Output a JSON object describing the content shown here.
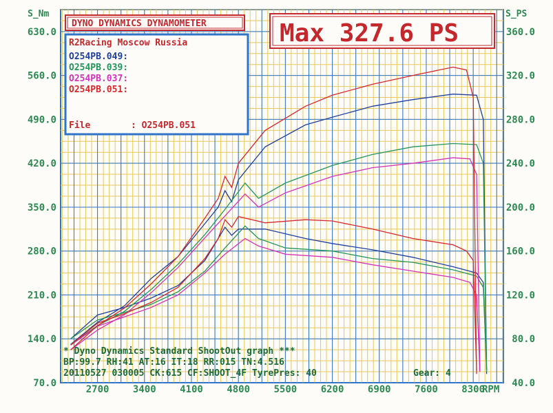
{
  "header": {
    "title": "DYNO DYNAMICS DYNAMOMETER",
    "max_label": "Max 327.6 PS"
  },
  "legend": {
    "shop": "R2Racing Moscow Russia",
    "file_label": "File",
    "file_value": ": O254PB.051"
  },
  "footer": {
    "line1": "* Dyno Dynamics Standard ShootOut graph ***",
    "line2": "BP:99.7  RH:41 AT:16 IT:18  RR:015 TN:4.516",
    "line3_left": "20110527 030005 CK:615 CF:SHOOT_4F TyrePres: 40",
    "line3_right": "Gear: 4"
  },
  "colors": {
    "background": "#fdfcf8",
    "grid_minor": "#e8c85a",
    "grid_major": "#2f74c9",
    "axis_text": "#2c8a52",
    "red": "#d8262d",
    "blue": "#1f3f9e",
    "green": "#23955a",
    "magenta": "#d432b8",
    "title_red": "#c4282d"
  },
  "chart_data": {
    "type": "line",
    "title": "DYNO DYNAMICS DYNAMOMETER",
    "xlabel": "RPM",
    "ylabel_left": "S_Nm",
    "ylabel_right": "S_PS",
    "xlim": [
      2150,
      8750
    ],
    "ylim_left": [
      70,
      665
    ],
    "ylim_right": [
      40,
      380
    ],
    "x_ticks": [
      "2700",
      "3400",
      "4100",
      "4800",
      "5500",
      "6200",
      "6900",
      "7600",
      "8300"
    ],
    "y_left_ticks": [
      "630.0",
      "560.0",
      "490.0",
      "420.0",
      "350.0",
      "280.0",
      "210.0",
      "140.0",
      "70.0"
    ],
    "y_right_ticks": [
      "360.0",
      "320.0",
      "280.0",
      "240.0",
      "200.0",
      "160.0",
      "120.0",
      "80.0",
      "40.0"
    ],
    "grid": true,
    "legend_position": "top-left",
    "series": [
      {
        "name": "O254PB.049:",
        "color": "#1f3f9e",
        "torque": [
          [
            2300,
            140
          ],
          [
            2700,
            178
          ],
          [
            3100,
            190
          ],
          [
            3500,
            205
          ],
          [
            3900,
            225
          ],
          [
            4300,
            265
          ],
          [
            4500,
            300
          ],
          [
            4600,
            318
          ],
          [
            4700,
            305
          ],
          [
            4800,
            315
          ],
          [
            5200,
            315
          ],
          [
            5800,
            300
          ],
          [
            6200,
            292
          ],
          [
            6800,
            282
          ],
          [
            7400,
            270
          ],
          [
            8000,
            255
          ],
          [
            8350,
            245
          ],
          [
            8450,
            230
          ],
          [
            8500,
            90
          ]
        ],
        "power": [
          [
            2300,
            75
          ],
          [
            2700,
            95
          ],
          [
            3100,
            110
          ],
          [
            3500,
            135
          ],
          [
            3900,
            155
          ],
          [
            4300,
            185
          ],
          [
            4500,
            200
          ],
          [
            4600,
            215
          ],
          [
            4700,
            205
          ],
          [
            4800,
            225
          ],
          [
            5200,
            255
          ],
          [
            5800,
            275
          ],
          [
            6200,
            282
          ],
          [
            6800,
            292
          ],
          [
            7400,
            298
          ],
          [
            8000,
            303
          ],
          [
            8350,
            302
          ],
          [
            8450,
            280
          ],
          [
            8500,
            48
          ]
        ]
      },
      {
        "name": "O254PB.039:",
        "color": "#23955a",
        "torque": [
          [
            2300,
            140
          ],
          [
            2700,
            170
          ],
          [
            3100,
            182
          ],
          [
            3500,
            195
          ],
          [
            3900,
            215
          ],
          [
            4300,
            248
          ],
          [
            4600,
            285
          ],
          [
            4900,
            320
          ],
          [
            5100,
            300
          ],
          [
            5500,
            285
          ],
          [
            6200,
            280
          ],
          [
            6800,
            268
          ],
          [
            7400,
            262
          ],
          [
            8000,
            250
          ],
          [
            8350,
            240
          ],
          [
            8450,
            222
          ],
          [
            8500,
            90
          ]
        ],
        "power": [
          [
            2300,
            75
          ],
          [
            2700,
            92
          ],
          [
            3100,
            105
          ],
          [
            3500,
            125
          ],
          [
            3900,
            148
          ],
          [
            4300,
            175
          ],
          [
            4600,
            198
          ],
          [
            4900,
            222
          ],
          [
            5100,
            208
          ],
          [
            5500,
            222
          ],
          [
            6200,
            238
          ],
          [
            6800,
            248
          ],
          [
            7400,
            255
          ],
          [
            8000,
            258
          ],
          [
            8350,
            257
          ],
          [
            8450,
            240
          ],
          [
            8500,
            50
          ]
        ]
      },
      {
        "name": "O254PB.037:",
        "color": "#d432b8",
        "torque": [
          [
            2300,
            130
          ],
          [
            2700,
            160
          ],
          [
            3100,
            175
          ],
          [
            3500,
            190
          ],
          [
            3900,
            210
          ],
          [
            4300,
            245
          ],
          [
            4600,
            275
          ],
          [
            4900,
            300
          ],
          [
            5100,
            288
          ],
          [
            5500,
            275
          ],
          [
            6200,
            270
          ],
          [
            6800,
            258
          ],
          [
            7400,
            248
          ],
          [
            8000,
            238
          ],
          [
            8250,
            230
          ],
          [
            8350,
            210
          ],
          [
            8400,
            90
          ]
        ],
        "power": [
          [
            2300,
            70
          ],
          [
            2700,
            88
          ],
          [
            3100,
            102
          ],
          [
            3500,
            122
          ],
          [
            3900,
            145
          ],
          [
            4300,
            172
          ],
          [
            4600,
            192
          ],
          [
            4900,
            212
          ],
          [
            5100,
            200
          ],
          [
            5500,
            213
          ],
          [
            6200,
            228
          ],
          [
            6800,
            236
          ],
          [
            7400,
            240
          ],
          [
            8000,
            245
          ],
          [
            8250,
            244
          ],
          [
            8350,
            230
          ],
          [
            8400,
            50
          ]
        ]
      },
      {
        "name": "O254PB.051:",
        "color": "#d8262d",
        "torque": [
          [
            2300,
            130
          ],
          [
            2700,
            165
          ],
          [
            3100,
            180
          ],
          [
            3500,
            198
          ],
          [
            3900,
            222
          ],
          [
            4300,
            268
          ],
          [
            4500,
            300
          ],
          [
            4600,
            330
          ],
          [
            4700,
            318
          ],
          [
            4800,
            335
          ],
          [
            5200,
            325
          ],
          [
            5800,
            330
          ],
          [
            6200,
            328
          ],
          [
            6800,
            315
          ],
          [
            7400,
            300
          ],
          [
            8000,
            290
          ],
          [
            8200,
            280
          ],
          [
            8300,
            265
          ],
          [
            8350,
            90
          ]
        ],
        "power": [
          [
            2300,
            70
          ],
          [
            2700,
            92
          ],
          [
            3100,
            108
          ],
          [
            3500,
            130
          ],
          [
            3900,
            155
          ],
          [
            4300,
            190
          ],
          [
            4500,
            208
          ],
          [
            4600,
            228
          ],
          [
            4700,
            218
          ],
          [
            4800,
            240
          ],
          [
            5200,
            270
          ],
          [
            5800,
            292
          ],
          [
            6200,
            302
          ],
          [
            6800,
            312
          ],
          [
            7400,
            320
          ],
          [
            8000,
            327.6
          ],
          [
            8200,
            325
          ],
          [
            8300,
            300
          ],
          [
            8350,
            48
          ]
        ]
      }
    ]
  }
}
